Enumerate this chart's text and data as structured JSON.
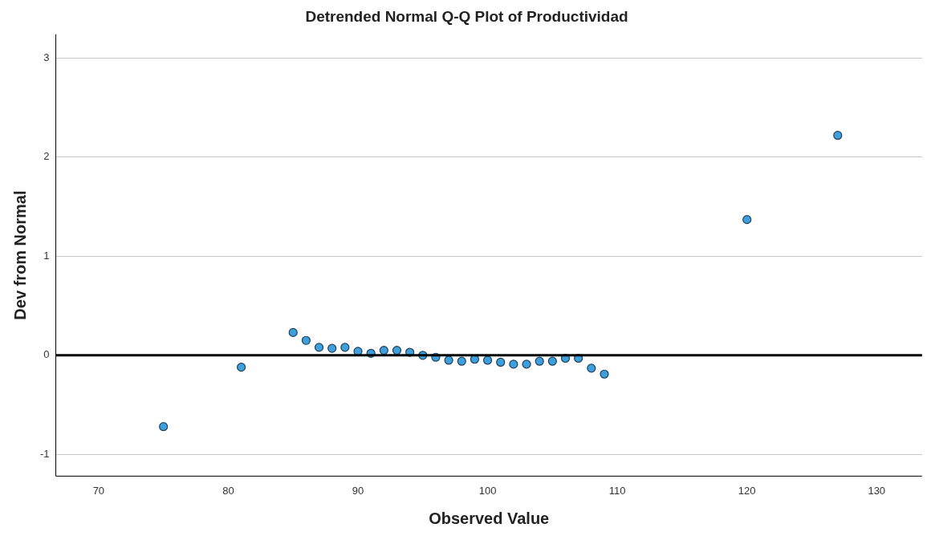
{
  "chart_data": {
    "type": "scatter",
    "title": "Detrended Normal Q-Q Plot of Productividad",
    "xlabel": "Observed Value",
    "ylabel": "Dev from Normal",
    "x": [
      75,
      81,
      85,
      86,
      87,
      88,
      89,
      90,
      91,
      92,
      93,
      94,
      95,
      96,
      97,
      98,
      99,
      100,
      101,
      102,
      103,
      104,
      105,
      106,
      107,
      108,
      109,
      120,
      127
    ],
    "series": [
      {
        "color": "#3d9fdc",
        "values": [
          -0.72,
          -0.12,
          0.23,
          0.15,
          0.08,
          0.07,
          0.08,
          0.04,
          0.02,
          0.05,
          0.05,
          0.03,
          0.0,
          -0.02,
          -0.05,
          -0.06,
          -0.04,
          -0.05,
          -0.07,
          -0.09,
          -0.09,
          -0.06,
          -0.06,
          -0.03,
          -0.03,
          -0.13,
          -0.19,
          1.37,
          2.22
        ]
      }
    ],
    "xlim": [
      66.7,
      133.5
    ],
    "xticks": [
      70,
      80,
      90,
      100,
      110,
      120,
      130
    ],
    "ylim": [
      -1.22,
      3.24
    ],
    "yticks": [
      -1,
      0,
      1,
      2,
      3
    ],
    "ref_lines": [
      {
        "axis": "y",
        "value": 0,
        "color": "#000000"
      }
    ],
    "grid": "y",
    "marker": "circle",
    "legend": false
  }
}
